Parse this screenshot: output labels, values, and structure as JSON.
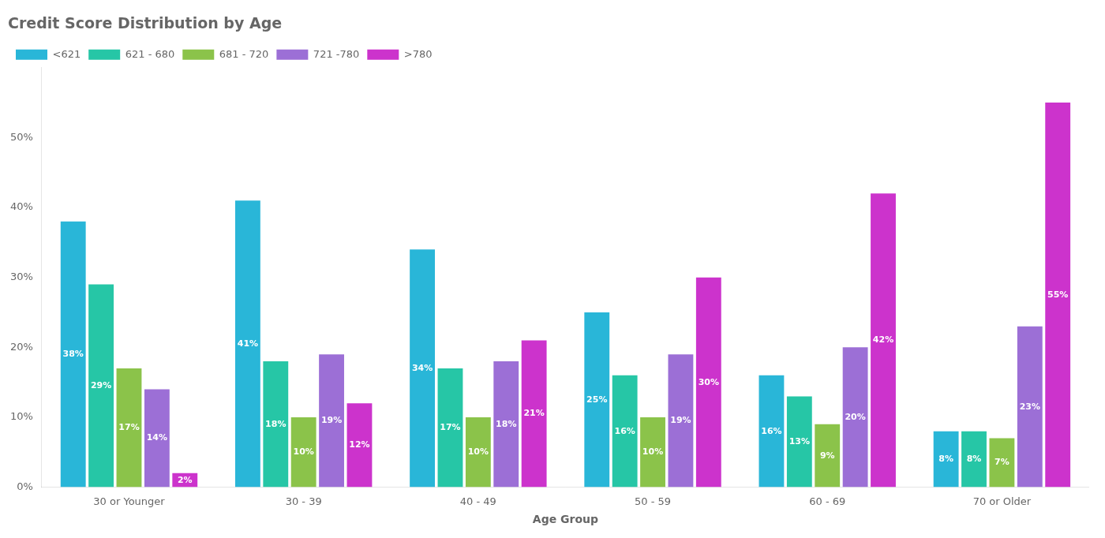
{
  "chart_data": {
    "type": "bar",
    "title": "Credit Score Distribution by Age",
    "xlabel": "Age Group",
    "categories": [
      "30 or Younger",
      "30 - 39",
      "40 - 49",
      "50 - 59",
      "60 - 69",
      "70 or Older"
    ],
    "series": [
      {
        "name": "<621",
        "color": "#29b6d8",
        "values": [
          38,
          41,
          34,
          25,
          16,
          8
        ],
        "value_labels": [
          "38%",
          "41%",
          "34%",
          "25%",
          "16%",
          "8%"
        ]
      },
      {
        "name": "621 - 680",
        "color": "#26c6a6",
        "values": [
          29,
          18,
          17,
          16,
          13,
          8
        ],
        "value_labels": [
          "29%",
          "18%",
          "17%",
          "16%",
          "13%",
          "8%"
        ]
      },
      {
        "name": "681 - 720",
        "color": "#8bc34a",
        "values": [
          17,
          10,
          10,
          10,
          9,
          7
        ],
        "value_labels": [
          "17%",
          "10%",
          "10%",
          "10%",
          "9%",
          "7%"
        ]
      },
      {
        "name": "721 -780",
        "color": "#9c6fd6",
        "values": [
          14,
          19,
          18,
          19,
          20,
          23
        ],
        "value_labels": [
          "14%",
          "19%",
          "18%",
          "19%",
          "20%",
          "23%"
        ]
      },
      {
        "name": ">780",
        "color": "#cc33cc",
        "values": [
          2,
          12,
          21,
          30,
          42,
          55
        ],
        "value_labels": [
          "2%",
          "12%",
          "21%",
          "30%",
          "42%",
          "55%"
        ]
      }
    ],
    "ylim": [
      0,
      60
    ],
    "yticks": [
      {
        "value": 0,
        "label": "0%"
      },
      {
        "value": 10,
        "label": "10%"
      },
      {
        "value": 20,
        "label": "20%"
      },
      {
        "value": 30,
        "label": "30%"
      },
      {
        "value": 40,
        "label": "40%"
      },
      {
        "value": 50,
        "label": "50%"
      }
    ],
    "grid": false,
    "legend": "top",
    "data_labels": true
  }
}
